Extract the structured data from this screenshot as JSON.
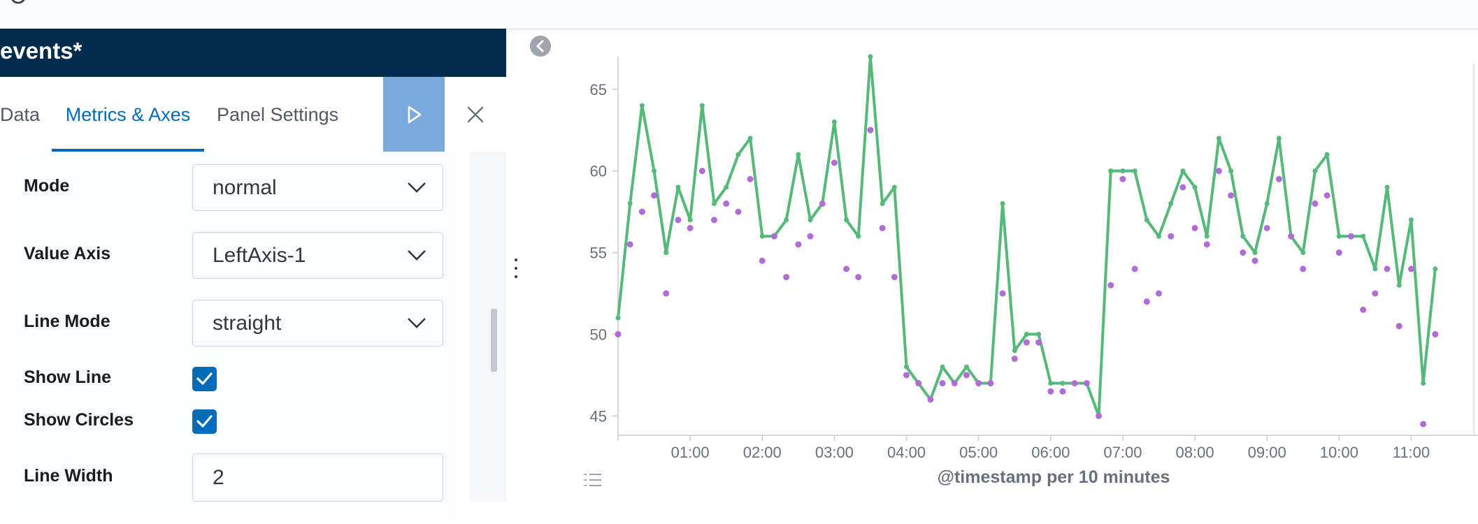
{
  "topbar": {
    "title": "",
    "gear_icon": "gear-icon"
  },
  "editor": {
    "title": "events*",
    "tabs": [
      {
        "label": "Data",
        "active": false
      },
      {
        "label": "Metrics & Axes",
        "active": true
      },
      {
        "label": "Panel Settings",
        "active": false
      }
    ],
    "apply_icon": "play-icon",
    "close_icon": "close-icon",
    "fields": {
      "mode": {
        "label": "Mode",
        "value": "normal"
      },
      "value_axis": {
        "label": "Value Axis",
        "value": "LeftAxis-1"
      },
      "line_mode": {
        "label": "Line Mode",
        "value": "straight"
      },
      "show_line": {
        "label": "Show Line",
        "checked": true
      },
      "show_circles": {
        "label": "Show Circles",
        "checked": true
      },
      "line_width": {
        "label": "Line Width",
        "value": "2"
      }
    }
  },
  "colors": {
    "accent": "#006bb8",
    "header": "#002b4c",
    "series_line": "#54b979",
    "series_dots": "#b16cd6",
    "apply": "#79aad9"
  },
  "chart_data": {
    "type": "line",
    "xlabel": "@timestamp per 10 minutes",
    "ylabel": "",
    "x_tick_labels": [
      "01:00",
      "02:00",
      "03:00",
      "04:00",
      "05:00",
      "06:00",
      "07:00",
      "08:00",
      "09:00",
      "10:00",
      "11:00"
    ],
    "y_ticks": [
      45,
      50,
      55,
      60,
      65
    ],
    "ylim": [
      44.5,
      67
    ],
    "grid": false,
    "legend": "collapsed",
    "series": [
      {
        "style": "line",
        "color": "#54b979",
        "x": [
          "00:00",
          "00:10",
          "00:20",
          "00:30",
          "00:40",
          "00:50",
          "01:00",
          "01:10",
          "01:20",
          "01:30",
          "01:40",
          "01:50",
          "02:00",
          "02:10",
          "02:20",
          "02:30",
          "02:40",
          "02:50",
          "03:00",
          "03:10",
          "03:20",
          "03:30",
          "03:40",
          "03:50",
          "04:00",
          "04:10",
          "04:20",
          "04:30",
          "04:40",
          "04:50",
          "05:00",
          "05:10",
          "05:20",
          "05:30",
          "05:40",
          "05:50",
          "06:00",
          "06:10",
          "06:20",
          "06:30",
          "06:40",
          "06:50",
          "07:00",
          "07:10",
          "07:20",
          "07:30",
          "07:40",
          "07:50",
          "08:00",
          "08:10",
          "08:20",
          "08:30",
          "08:40",
          "08:50",
          "09:00",
          "09:10",
          "09:20",
          "09:30",
          "09:40",
          "09:50",
          "10:00",
          "10:10",
          "10:20",
          "10:30",
          "10:40",
          "10:50",
          "11:00",
          "11:10",
          "11:20"
        ],
        "values": [
          51,
          58,
          64,
          60,
          55,
          59,
          57,
          64,
          58,
          59,
          61,
          62,
          56,
          56,
          57,
          61,
          57,
          58,
          63,
          57,
          56,
          67,
          58,
          59,
          48,
          47,
          46,
          48,
          47,
          48,
          47,
          47,
          58,
          49,
          50,
          50,
          47,
          47,
          47,
          47,
          45,
          60,
          60,
          60,
          57,
          56,
          58,
          60,
          59,
          56,
          62,
          60,
          56,
          55,
          58,
          62,
          56,
          55,
          60,
          61,
          56,
          56,
          56,
          54,
          59,
          53,
          57,
          47,
          54
        ]
      },
      {
        "style": "points",
        "color": "#b16cd6",
        "x": [
          "00:00",
          "00:10",
          "00:20",
          "00:30",
          "00:40",
          "00:50",
          "01:00",
          "01:10",
          "01:20",
          "01:30",
          "01:40",
          "01:50",
          "02:00",
          "02:10",
          "02:20",
          "02:30",
          "02:40",
          "02:50",
          "03:00",
          "03:10",
          "03:20",
          "03:30",
          "03:40",
          "03:50",
          "04:00",
          "04:10",
          "04:20",
          "04:30",
          "04:40",
          "04:50",
          "05:00",
          "05:10",
          "05:20",
          "05:30",
          "05:40",
          "05:50",
          "06:00",
          "06:10",
          "06:20",
          "06:30",
          "06:40",
          "06:50",
          "07:00",
          "07:10",
          "07:20",
          "07:30",
          "07:40",
          "07:50",
          "08:00",
          "08:10",
          "08:20",
          "08:30",
          "08:40",
          "08:50",
          "09:00",
          "09:10",
          "09:20",
          "09:30",
          "09:40",
          "09:50",
          "10:00",
          "10:10",
          "10:20",
          "10:30",
          "10:40",
          "10:50",
          "11:00",
          "11:10",
          "11:20"
        ],
        "values": [
          50,
          55.5,
          57.5,
          58.5,
          52.5,
          57,
          56.5,
          60,
          57,
          58,
          57.5,
          59.5,
          54.5,
          56,
          53.5,
          55.5,
          56,
          58,
          60.5,
          54,
          53.5,
          62.5,
          56.5,
          53.5,
          47.5,
          47,
          46,
          47,
          47,
          47.5,
          47,
          47,
          52.5,
          48.5,
          49.5,
          49.5,
          46.5,
          46.5,
          47,
          47,
          45,
          53,
          59.5,
          54,
          52,
          52.5,
          56,
          59,
          56.5,
          55.5,
          60,
          58.5,
          55,
          54.5,
          56.5,
          59.5,
          56,
          54,
          58,
          58.5,
          55,
          56,
          51.5,
          52.5,
          54,
          50.5,
          54,
          44.5,
          50
        ]
      }
    ]
  }
}
